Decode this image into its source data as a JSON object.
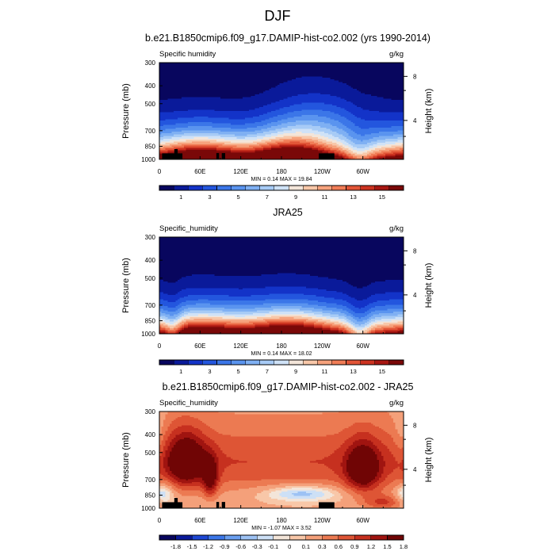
{
  "figure": {
    "title": "DJF"
  },
  "colors": {
    "levels_abs": [
      "#08065e",
      "#0a1a9a",
      "#1333c8",
      "#2356de",
      "#3b76e8",
      "#5a94ef",
      "#7fb0f3",
      "#a7cbf6",
      "#cfe2f7",
      "#f3e5d9",
      "#f8c7a8",
      "#f6a27c",
      "#f07c56",
      "#e25537",
      "#cc3320",
      "#a81712",
      "#7a0808"
    ],
    "levels_diff": [
      "#08065e",
      "#0a1a9a",
      "#1d47d4",
      "#3b76e8",
      "#6a9ff0",
      "#9dc2f4",
      "#cde0f6",
      "#f3e5d9",
      "#f8c7a8",
      "#f4a07a",
      "#ec7a52",
      "#de5535",
      "#c6301f",
      "#a01410",
      "#700505"
    ],
    "land": "#000000"
  },
  "chart_data": [
    {
      "type": "heatmap",
      "title": "b.e21.B1850cmip6.f09_g17.DAMIP-hist-co2.002 (yrs 1990-2014)",
      "left_label": "Specific humidity",
      "right_label": "g/kg",
      "ylabel": "Pressure (mb)",
      "ylabel_right": "Height (km)",
      "x_ticks": [
        "0",
        "60E",
        "120E",
        "180",
        "120W",
        "60W"
      ],
      "y_ticks": [
        "300",
        "400",
        "500",
        "700",
        "850",
        "1000"
      ],
      "y_ticks_right": [
        "8",
        "4"
      ],
      "minmax": "MIN =   0.14  MAX =  19.84",
      "colorbar_labels": [
        "1",
        "3",
        "5",
        "7",
        "9",
        "11",
        "13",
        "15"
      ],
      "min": 0.14,
      "max": 19.84
    },
    {
      "type": "heatmap",
      "title": "JRA25",
      "left_label": "Specific_humidity",
      "right_label": "g/kg",
      "ylabel": "Pressure (mb)",
      "ylabel_right": "Height (km)",
      "x_ticks": [
        "0",
        "60E",
        "120E",
        "180",
        "120W",
        "60W"
      ],
      "y_ticks": [
        "300",
        "400",
        "500",
        "700",
        "850",
        "1000"
      ],
      "y_ticks_right": [
        "8",
        "4"
      ],
      "minmax": "MIN =   0.14  MAX =  18.02",
      "colorbar_labels": [
        "1",
        "3",
        "5",
        "7",
        "9",
        "11",
        "13",
        "15"
      ],
      "min": 0.14,
      "max": 18.02
    },
    {
      "type": "heatmap",
      "title": "b.e21.B1850cmip6.f09_g17.DAMIP-hist-co2.002 - JRA25",
      "left_label": "Specific_humidity",
      "right_label": "g/kg",
      "ylabel": "Pressure (mb)",
      "ylabel_right": "Height (km)",
      "x_ticks": [
        "0",
        "60E",
        "120E",
        "180",
        "120W",
        "60W"
      ],
      "y_ticks": [
        "300",
        "400",
        "500",
        "700",
        "850",
        "1000"
      ],
      "y_ticks_right": [
        "8",
        "4"
      ],
      "minmax": "MIN =  -1.07  MAX =   3.52",
      "colorbar_labels": [
        "-1.8",
        "-1.5",
        "-1.2",
        "-0.9",
        "-0.6",
        "-0.3",
        "-0.1",
        "0",
        "0.1",
        "0.3",
        "0.6",
        "0.9",
        "1.2",
        "1.5",
        "1.8"
      ],
      "min": -1.07,
      "max": 3.52
    }
  ]
}
